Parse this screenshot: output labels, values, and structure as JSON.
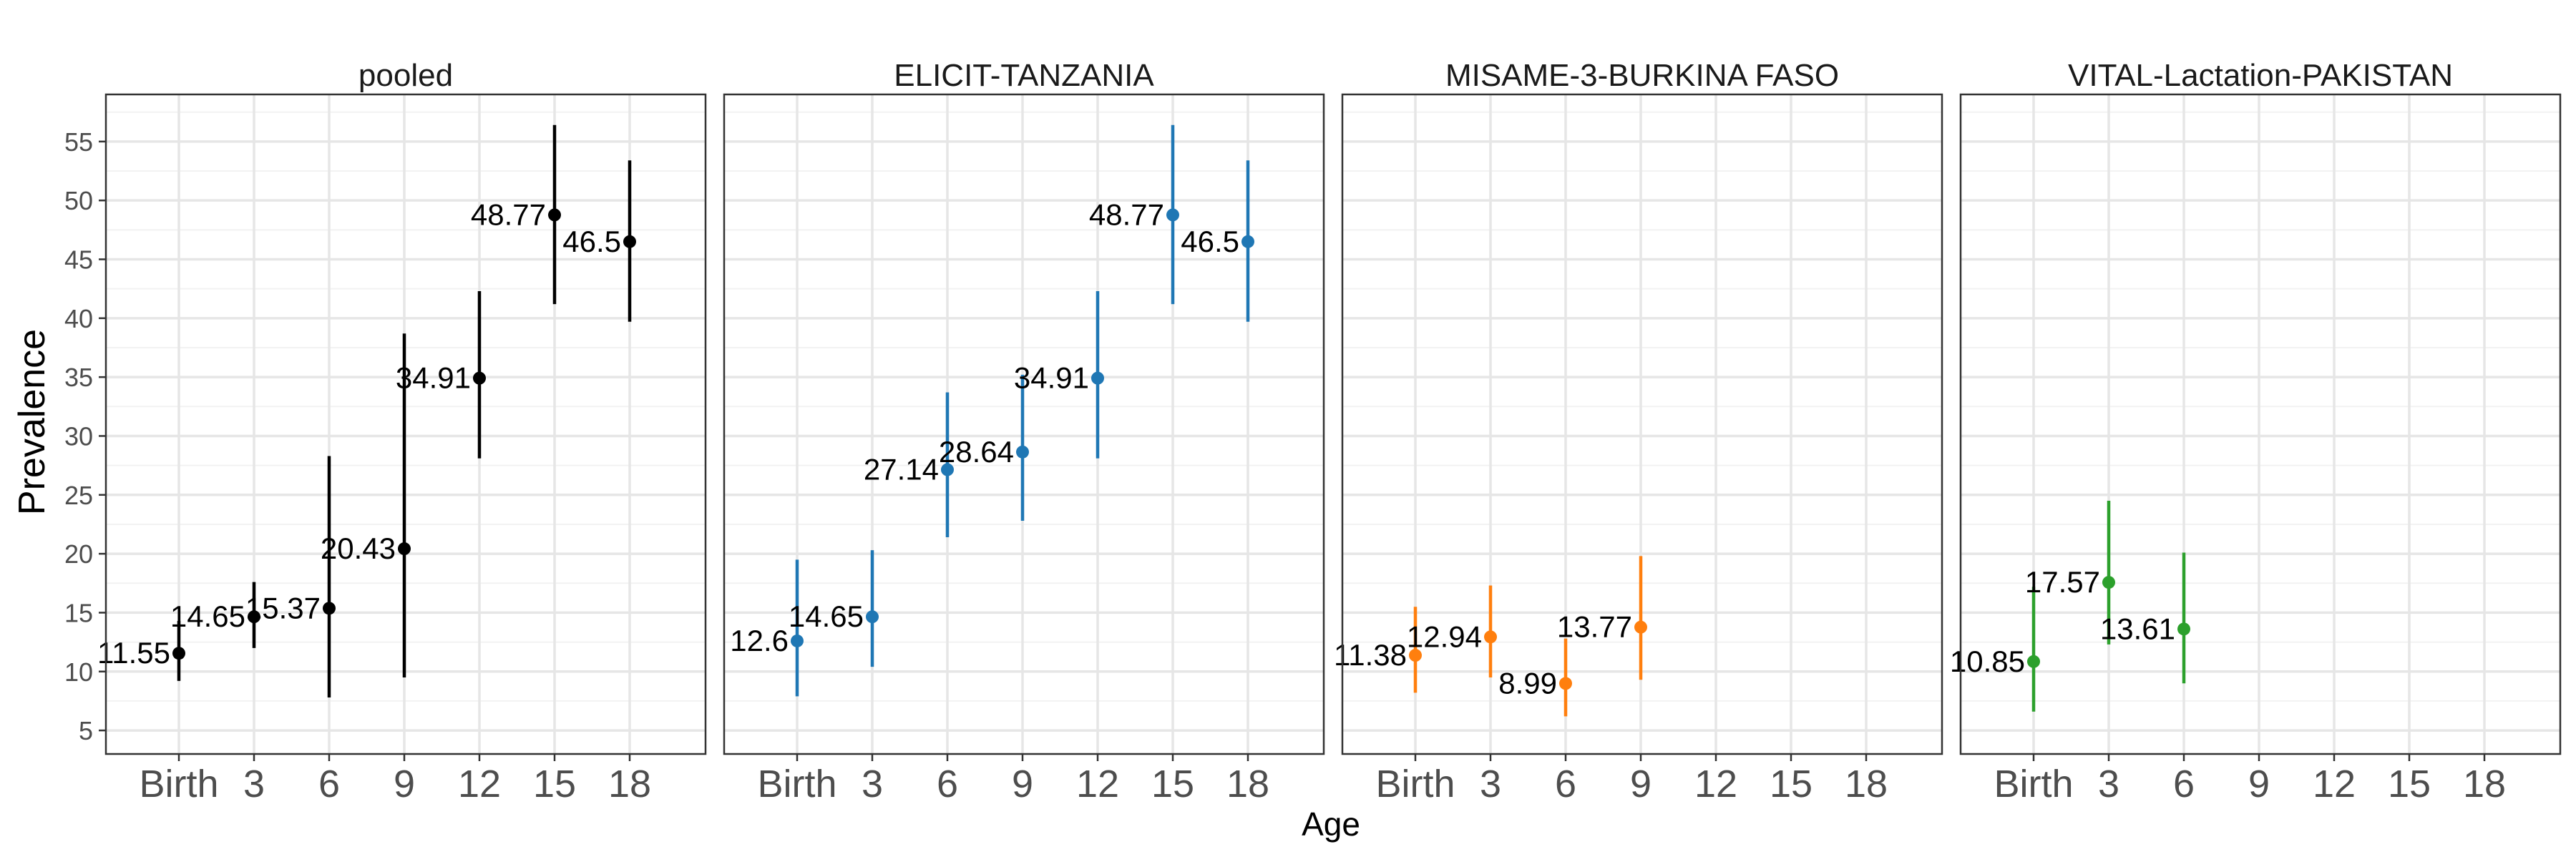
{
  "chart_data": {
    "type": "scatter",
    "xlabel": "Age",
    "ylabel": "Prevalence",
    "x_categories": [
      "Birth",
      "3",
      "6",
      "9",
      "12",
      "15",
      "18"
    ],
    "ylim": [
      3,
      59
    ],
    "y_ticks": [
      5,
      10,
      15,
      20,
      25,
      30,
      35,
      40,
      45,
      50,
      55
    ],
    "grid": true,
    "panels": [
      {
        "title": "pooled",
        "color": "#000000",
        "points": [
          {
            "x": "Birth",
            "y": 11.55,
            "lo": 9.2,
            "hi": 14.3,
            "label": "11.55"
          },
          {
            "x": "3",
            "y": 14.65,
            "lo": 12.0,
            "hi": 17.6,
            "label": "14.65"
          },
          {
            "x": "6",
            "y": 15.37,
            "lo": 7.8,
            "hi": 28.3,
            "label": "15.37"
          },
          {
            "x": "9",
            "y": 20.43,
            "lo": 9.5,
            "hi": 38.7,
            "label": "20.43"
          },
          {
            "x": "12",
            "y": 34.91,
            "lo": 28.1,
            "hi": 42.3,
            "label": "34.91"
          },
          {
            "x": "15",
            "y": 48.77,
            "lo": 41.2,
            "hi": 56.4,
            "label": "48.77"
          },
          {
            "x": "18",
            "y": 46.5,
            "lo": 39.7,
            "hi": 53.4,
            "label": "46.5"
          }
        ]
      },
      {
        "title": "ELICIT-TANZANIA",
        "color": "#1f77b4",
        "points": [
          {
            "x": "Birth",
            "y": 12.6,
            "lo": 7.9,
            "hi": 19.5,
            "label": "12.6"
          },
          {
            "x": "3",
            "y": 14.65,
            "lo": 10.4,
            "hi": 20.3,
            "label": "14.65"
          },
          {
            "x": "6",
            "y": 27.14,
            "lo": 21.4,
            "hi": 33.7,
            "label": "27.14"
          },
          {
            "x": "9",
            "y": 28.64,
            "lo": 22.8,
            "hi": 35.2,
            "label": "28.64"
          },
          {
            "x": "12",
            "y": 34.91,
            "lo": 28.1,
            "hi": 42.3,
            "label": "34.91"
          },
          {
            "x": "15",
            "y": 48.77,
            "lo": 41.2,
            "hi": 56.4,
            "label": "48.77"
          },
          {
            "x": "18",
            "y": 46.5,
            "lo": 39.7,
            "hi": 53.4,
            "label": "46.5"
          }
        ]
      },
      {
        "title": "MISAME-3-BURKINA FASO",
        "color": "#ff7f0e",
        "points": [
          {
            "x": "Birth",
            "y": 11.38,
            "lo": 8.2,
            "hi": 15.5,
            "label": "11.38"
          },
          {
            "x": "3",
            "y": 12.94,
            "lo": 9.5,
            "hi": 17.3,
            "label": "12.94"
          },
          {
            "x": "6",
            "y": 8.99,
            "lo": 6.2,
            "hi": 12.8,
            "label": "8.99"
          },
          {
            "x": "9",
            "y": 13.77,
            "lo": 9.3,
            "hi": 19.8,
            "label": "13.77"
          }
        ]
      },
      {
        "title": "VITAL-Lactation-PAKISTAN",
        "color": "#2ca02c",
        "points": [
          {
            "x": "Birth",
            "y": 10.85,
            "lo": 6.6,
            "hi": 17.2,
            "label": "10.85"
          },
          {
            "x": "3",
            "y": 17.57,
            "lo": 12.3,
            "hi": 24.5,
            "label": "17.57"
          },
          {
            "x": "6",
            "y": 13.61,
            "lo": 9.0,
            "hi": 20.1,
            "label": "13.61"
          }
        ]
      }
    ]
  }
}
